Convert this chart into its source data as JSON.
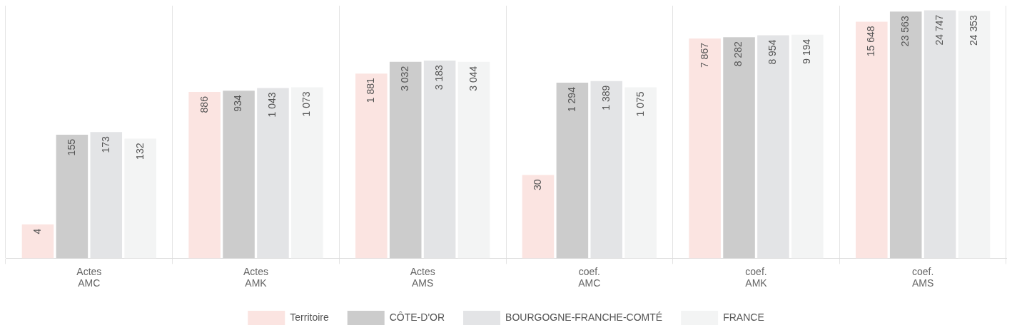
{
  "chart_data": {
    "type": "bar",
    "categories": [
      "Actes AMC",
      "Actes AMK",
      "Actes AMS",
      "coef. AMC",
      "coef. AMK",
      "coef. AMS"
    ],
    "series": [
      {
        "name": "Territoire",
        "color": "#fbe4e1",
        "values": [
          4,
          886,
          1881,
          30,
          7867,
          15648
        ],
        "value_labels": [
          "4",
          "886",
          "1 881",
          "30",
          "7 867",
          "15 648"
        ]
      },
      {
        "name": "CÔTE-D'OR",
        "color": "#cccccc",
        "values": [
          155,
          934,
          3032,
          1294,
          8282,
          23563
        ],
        "value_labels": [
          "155",
          "934",
          "3 032",
          "1 294",
          "8 282",
          "23 563"
        ]
      },
      {
        "name": "BOURGOGNE-FRANCHE-COMTÉ",
        "color": "#e3e4e6",
        "values": [
          173,
          1043,
          3183,
          1389,
          8954,
          24747
        ],
        "value_labels": [
          "173",
          "1 043",
          "3 183",
          "1 389",
          "8 954",
          "24 747"
        ]
      },
      {
        "name": "FRANCE",
        "color": "#f3f4f4",
        "values": [
          132,
          1073,
          3044,
          1075,
          9194,
          24353
        ],
        "value_labels": [
          "132",
          "1 073",
          "3 044",
          "1 075",
          "9 194",
          "24 353"
        ]
      }
    ],
    "log": true,
    "ylim": [
      1,
      30000
    ],
    "grid": "x",
    "tick_labels": "x",
    "legend": "bottom"
  }
}
